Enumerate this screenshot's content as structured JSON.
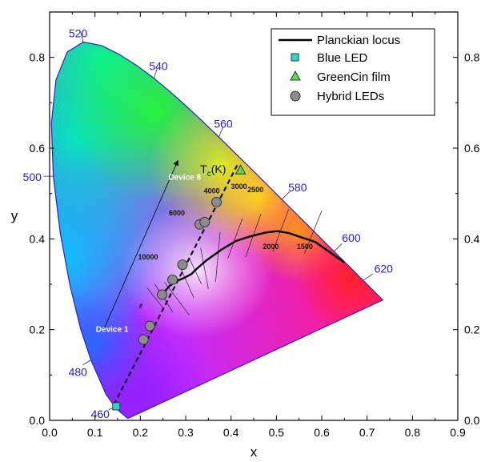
{
  "chart_data": {
    "type": "scatter",
    "xlabel": "x",
    "ylabel": "y",
    "xlim": [
      0.0,
      0.9
    ],
    "ylim": [
      0.0,
      0.9
    ],
    "x_ticks": [
      "0.0",
      "0.1",
      "0.2",
      "0.3",
      "0.4",
      "0.5",
      "0.6",
      "0.7",
      "0.8",
      "0.9"
    ],
    "y_ticks": [
      "0.0",
      "0.2",
      "0.4",
      "0.6",
      "0.8"
    ],
    "legend": {
      "position": "top-right",
      "entries": [
        "Planckian locus",
        "Blue LED",
        "GreenCin film",
        "Hybrid LEDs"
      ]
    },
    "spectral_locus_labels": [
      {
        "text": "460",
        "x": 0.144,
        "y": 0.03
      },
      {
        "text": "480",
        "x": 0.091,
        "y": 0.133
      },
      {
        "text": "500",
        "x": 0.008,
        "y": 0.538
      },
      {
        "text": "520",
        "x": 0.074,
        "y": 0.834
      },
      {
        "text": "540",
        "x": 0.23,
        "y": 0.754
      },
      {
        "text": "560",
        "x": 0.373,
        "y": 0.624
      },
      {
        "text": "580",
        "x": 0.512,
        "y": 0.487
      },
      {
        "text": "600",
        "x": 0.627,
        "y": 0.372
      },
      {
        "text": "620",
        "x": 0.691,
        "y": 0.308
      }
    ],
    "spectral_locus": {
      "x": [
        0.1741,
        0.1738,
        0.1733,
        0.1726,
        0.1714,
        0.1689,
        0.1644,
        0.1566,
        0.144,
        0.1241,
        0.0913,
        0.0687,
        0.0454,
        0.0235,
        0.0082,
        0.0039,
        0.0139,
        0.0389,
        0.0743,
        0.1142,
        0.1547,
        0.1929,
        0.2296,
        0.2658,
        0.3016,
        0.3373,
        0.3731,
        0.4087,
        0.4441,
        0.4788,
        0.5125,
        0.5448,
        0.5752,
        0.6029,
        0.627,
        0.6482,
        0.6658,
        0.6915,
        0.7079,
        0.7347
      ],
      "y": [
        0.005,
        0.0049,
        0.0048,
        0.0048,
        0.0051,
        0.0069,
        0.0109,
        0.0177,
        0.0297,
        0.0578,
        0.1327,
        0.2007,
        0.295,
        0.4127,
        0.5384,
        0.6548,
        0.7502,
        0.812,
        0.8338,
        0.8262,
        0.8059,
        0.7816,
        0.7543,
        0.7243,
        0.6923,
        0.6589,
        0.6245,
        0.5896,
        0.5547,
        0.5202,
        0.4866,
        0.4544,
        0.4242,
        0.3965,
        0.3725,
        0.3514,
        0.334,
        0.3083,
        0.292,
        0.2653
      ]
    },
    "planckian_locus": {
      "x": [
        0.242,
        0.264,
        0.28,
        0.299,
        0.313,
        0.322,
        0.345,
        0.38,
        0.41,
        0.437,
        0.46,
        0.476,
        0.502,
        0.527,
        0.586,
        0.62,
        0.65
      ],
      "y": [
        0.27,
        0.296,
        0.307,
        0.315,
        0.323,
        0.332,
        0.352,
        0.377,
        0.395,
        0.404,
        0.41,
        0.414,
        0.417,
        0.413,
        0.393,
        0.369,
        0.348
      ]
    },
    "isotemperature_lines": [
      {
        "label": "10000",
        "x1": 0.253,
        "y1": 0.305,
        "x2": 0.308,
        "y2": 0.232
      },
      {
        "label": "6000",
        "x1": 0.309,
        "y1": 0.355,
        "x2": 0.335,
        "y2": 0.3
      },
      {
        "label": "4000",
        "x1": 0.376,
        "y1": 0.415,
        "x2": 0.366,
        "y2": 0.305
      },
      {
        "label": "3000",
        "x1": 0.425,
        "y1": 0.445,
        "x2": 0.393,
        "y2": 0.357
      },
      {
        "label": "2500",
        "x1": 0.466,
        "y1": 0.455,
        "x2": 0.432,
        "y2": 0.36
      },
      {
        "label": "2000",
        "x1": 0.527,
        "y1": 0.465,
        "x2": 0.492,
        "y2": 0.372
      },
      {
        "label": "1500",
        "x1": 0.6,
        "y1": 0.462,
        "x2": 0.562,
        "y2": 0.368
      }
    ],
    "ct_labels": [
      {
        "text": "10000",
        "x": 0.195,
        "y": 0.355
      },
      {
        "text": "6000",
        "x": 0.263,
        "y": 0.452
      },
      {
        "text": "4000",
        "x": 0.34,
        "y": 0.5
      },
      {
        "text": "3000",
        "x": 0.4,
        "y": 0.51
      },
      {
        "text": "2500",
        "x": 0.436,
        "y": 0.503
      },
      {
        "text": "2000",
        "x": 0.47,
        "y": 0.378
      },
      {
        "text": "1500",
        "x": 0.545,
        "y": 0.378
      },
      {
        "text": "∞",
        "x": 0.202,
        "y": 0.245
      }
    ],
    "tc_label": {
      "main": "T",
      "sub": "c",
      "suffix": "(K)",
      "x": 0.332,
      "y": 0.545
    },
    "device_labels": [
      {
        "text": "Device 1",
        "x": 0.102,
        "y": 0.195
      },
      {
        "text": "Device 8",
        "x": 0.262,
        "y": 0.53
      }
    ],
    "arrow": {
      "x1": 0.12,
      "y1": 0.202,
      "x2": 0.283,
      "y2": 0.573
    },
    "trend_line": {
      "x1": 0.142,
      "y1": 0.035,
      "x2": 0.415,
      "y2": 0.565
    },
    "series": [
      {
        "name": "Blue LED",
        "marker": "square",
        "color": "#2ad6c8",
        "x": [
          0.147
        ],
        "y": [
          0.031
        ]
      },
      {
        "name": "GreenCin film",
        "marker": "triangle",
        "color": "#52e04a",
        "x": [
          0.421
        ],
        "y": [
          0.552
        ]
      },
      {
        "name": "Hybrid LEDs",
        "marker": "circle",
        "color": "#8c8c8c",
        "x": [
          0.207,
          0.221,
          0.248,
          0.271,
          0.293,
          0.331,
          0.342,
          0.368
        ],
        "y": [
          0.178,
          0.208,
          0.277,
          0.31,
          0.343,
          0.432,
          0.437,
          0.481
        ]
      }
    ],
    "planckian_color": "#000000",
    "spectral_label_color": "#1f1fd6",
    "frame_color": "#000000"
  }
}
